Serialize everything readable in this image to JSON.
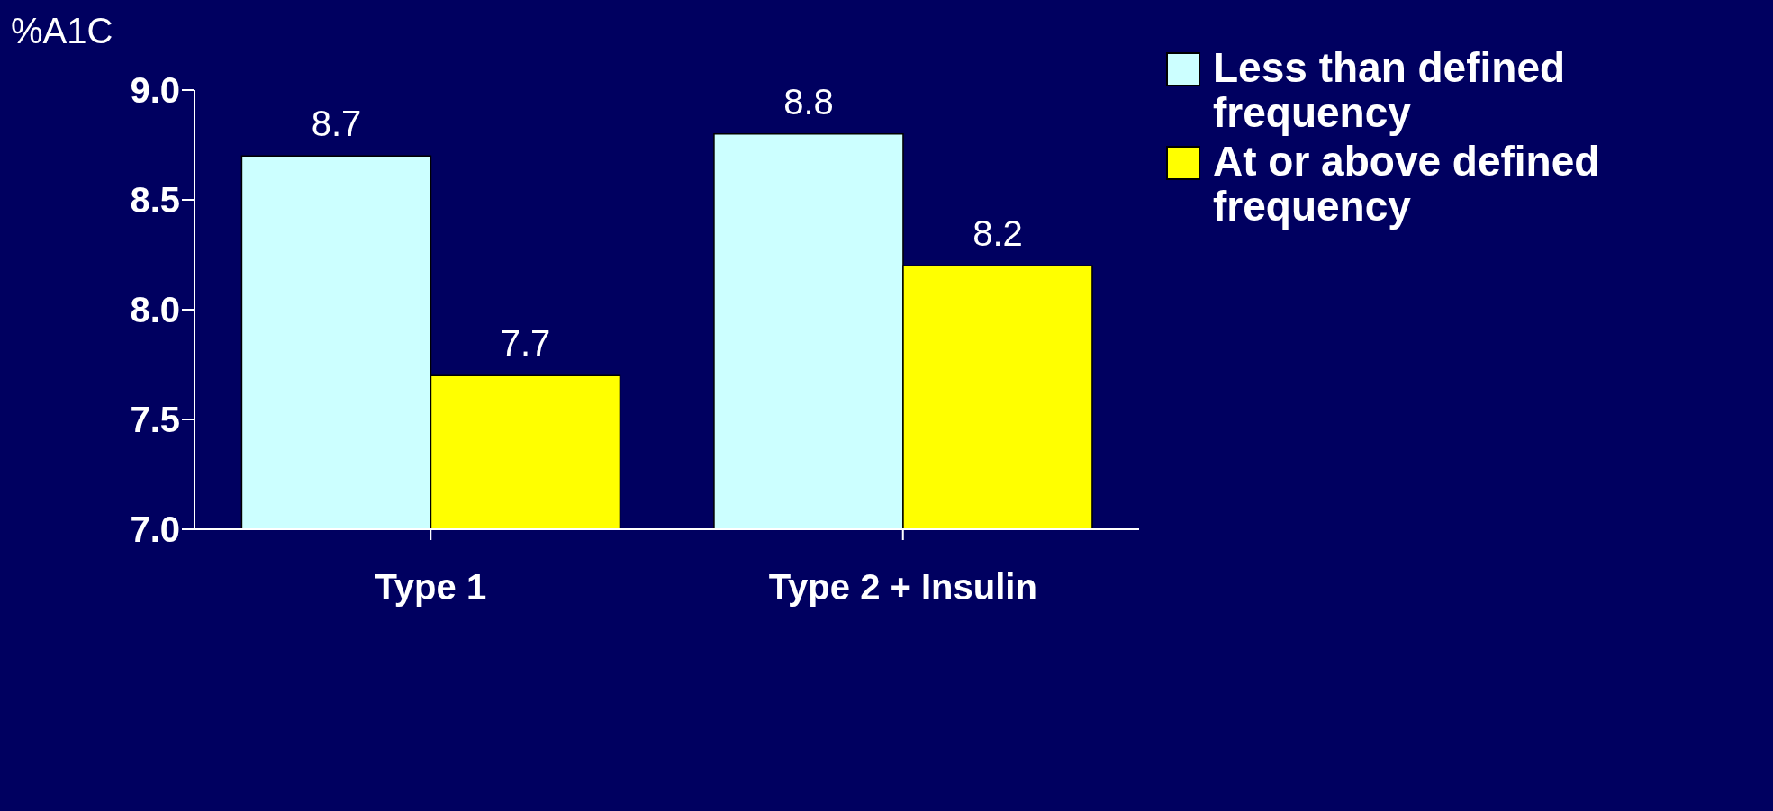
{
  "chart_data": {
    "type": "bar",
    "ylabel": "%A1C",
    "categories": [
      "Type 1",
      "Type 2 + Insulin"
    ],
    "series": [
      {
        "name": "Less than defined frequency",
        "color": "#ccffff",
        "values": [
          8.7,
          8.8
        ]
      },
      {
        "name": "At or above defined frequency",
        "color": "#ffff00",
        "values": [
          7.7,
          8.2
        ]
      }
    ],
    "ylim": [
      7,
      9
    ],
    "yticks": [
      {
        "value": 7,
        "label": "7.0"
      },
      {
        "value": 7.5,
        "label": "7.5"
      },
      {
        "value": 8,
        "label": "8.0"
      },
      {
        "value": 8.5,
        "label": "8.5"
      },
      {
        "value": 9,
        "label": "9.0"
      }
    ],
    "data_labels": true,
    "grid": false,
    "legend": "top right"
  }
}
